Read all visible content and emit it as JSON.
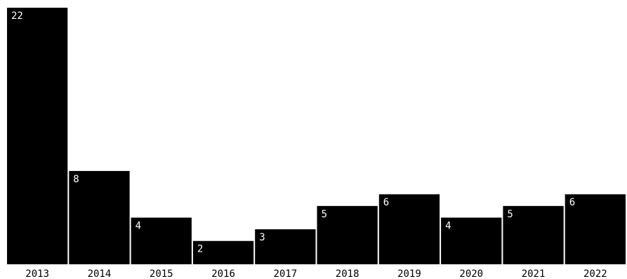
{
  "chart_data": {
    "type": "bar",
    "title": "",
    "xlabel": "",
    "ylabel": "",
    "categories": [
      "2013",
      "2014",
      "2015",
      "2016",
      "2017",
      "2018",
      "2019",
      "2020",
      "2021",
      "2022"
    ],
    "values": [
      22,
      8,
      4,
      2,
      3,
      5,
      6,
      4,
      5,
      6
    ],
    "ylim": [
      0,
      22
    ],
    "grid": false,
    "legend": "none",
    "bar_color": "#000000",
    "label_color": "#ffffff",
    "axis_text_color": "#000000"
  }
}
